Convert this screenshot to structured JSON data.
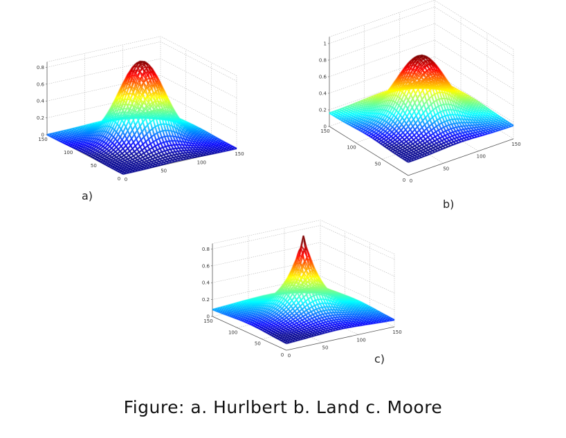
{
  "caption": "Figure: a. Hurlbert b. Land c. Moore",
  "chart_data": [
    {
      "type": "surface",
      "title": "",
      "panel_label": "a)",
      "method": "Hurlbert",
      "x_range": [
        0,
        150
      ],
      "y_range": [
        0,
        150
      ],
      "z_range": [
        0,
        1
      ],
      "x_ticks": [
        "0",
        "50",
        "100",
        "150"
      ],
      "y_ticks": [
        "0",
        "50",
        "100",
        "150"
      ],
      "z_ticks": [
        "0",
        "0.2",
        "0.4",
        "0.6",
        "0.8"
      ],
      "shape": "gaussian",
      "peak": 0.95,
      "grid": true
    },
    {
      "type": "surface",
      "title": "",
      "panel_label": "b)",
      "method": "Land",
      "x_range": [
        0,
        150
      ],
      "y_range": [
        0,
        150
      ],
      "z_range": [
        0,
        1
      ],
      "x_ticks": [
        "0",
        "50",
        "100",
        "150"
      ],
      "y_ticks": [
        "0",
        "50",
        "100",
        "150"
      ],
      "z_ticks": [
        "0",
        "0.2",
        "0.4",
        "0.6",
        "0.8",
        "1"
      ],
      "shape": "gaussian-wide",
      "peak": 0.92,
      "grid": true
    },
    {
      "type": "surface",
      "title": "",
      "panel_label": "c)",
      "method": "Moore",
      "x_range": [
        0,
        150
      ],
      "y_range": [
        0,
        150
      ],
      "z_range": [
        0,
        1
      ],
      "x_ticks": [
        "0",
        "50",
        "100",
        "150"
      ],
      "y_ticks": [
        "0",
        "50",
        "100",
        "150"
      ],
      "z_ticks": [
        "0",
        "0.2",
        "0.4",
        "0.6",
        "0.8"
      ],
      "shape": "exponential",
      "peak": 0.95,
      "grid": true
    }
  ]
}
